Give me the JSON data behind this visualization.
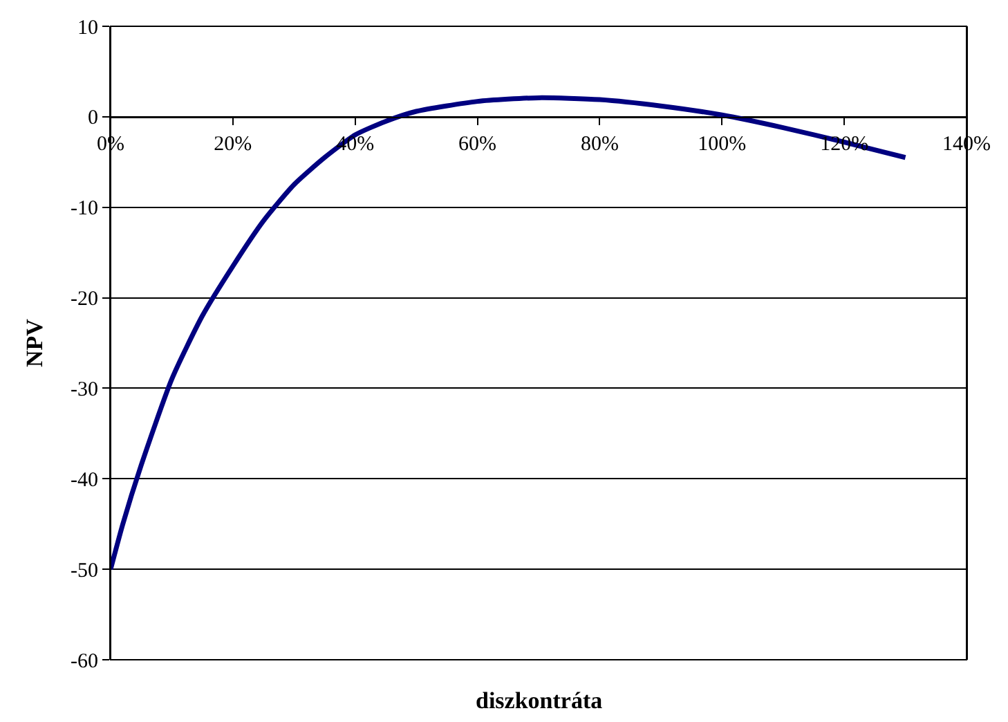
{
  "chart_data": {
    "type": "line",
    "xlabel": "diszkontráta",
    "ylabel": "NPV",
    "x": [
      0,
      0.02,
      0.05,
      0.1,
      0.15,
      0.2,
      0.25,
      0.3,
      0.35,
      0.4,
      0.45,
      0.5,
      0.6,
      0.7,
      0.8,
      0.9,
      1.0,
      1.1,
      1.2,
      1.3
    ],
    "series": [
      {
        "color": "#000080",
        "values": [
          -50,
          -45,
          -38.5,
          -29,
          -22,
          -16.5,
          -11.5,
          -7.5,
          -4.5,
          -2,
          -0.5,
          0.6,
          1.7,
          2.1,
          1.9,
          1.2,
          0.2,
          -1.2,
          -2.8,
          -4.5
        ]
      }
    ],
    "xlim": [
      0,
      1.4
    ],
    "xticks": [
      {
        "value": 0,
        "label": "0%"
      },
      {
        "value": 0.2,
        "label": "20%"
      },
      {
        "value": 0.4,
        "label": "40%"
      },
      {
        "value": 0.6,
        "label": "60%"
      },
      {
        "value": 0.8,
        "label": "80%"
      },
      {
        "value": 1.0,
        "label": "100%"
      },
      {
        "value": 1.2,
        "label": "120%"
      },
      {
        "value": 1.4,
        "label": "140%"
      }
    ],
    "ylim": [
      -60,
      10
    ],
    "yticks": [
      -60,
      -50,
      -40,
      -30,
      -20,
      -10,
      0,
      10
    ],
    "grid": "y",
    "legend": false,
    "marker": "none",
    "line_style": "solid"
  }
}
